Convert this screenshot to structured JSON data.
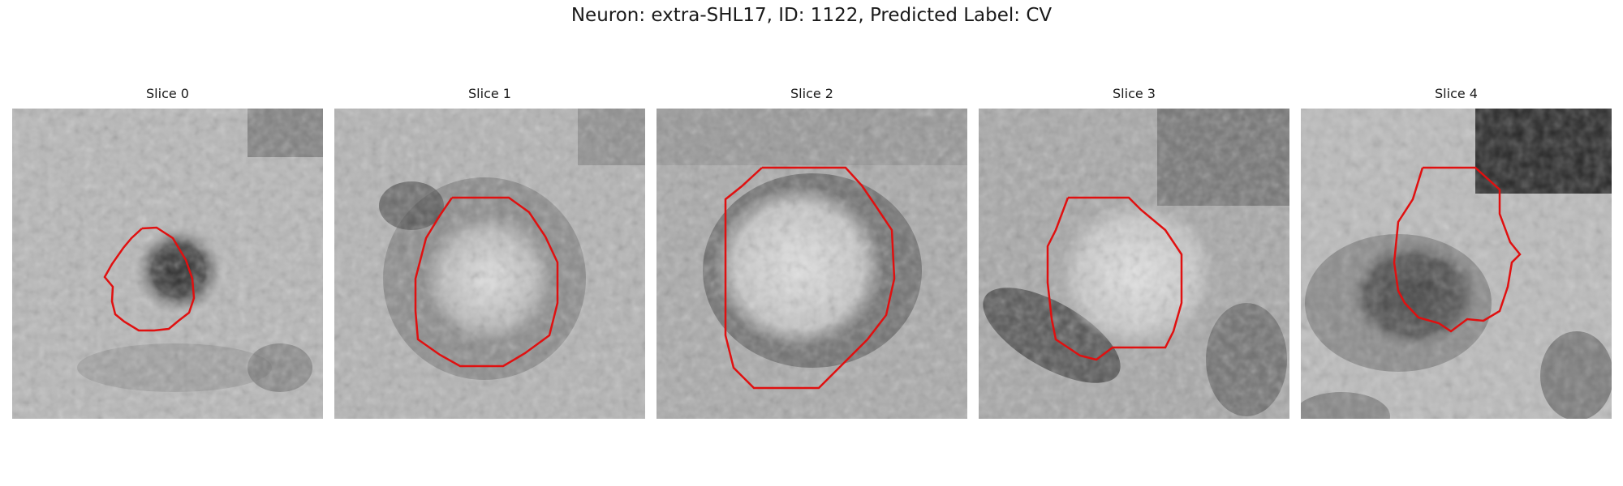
{
  "figure": {
    "title": "Neuron: extra-SHL17, ID: 1122, Predicted Label: CV"
  },
  "colors": {
    "contour": "#e01010"
  },
  "panels": [
    {
      "title": "Slice 0"
    },
    {
      "title": "Slice 1"
    },
    {
      "title": "Slice 2"
    },
    {
      "title": "Slice 3"
    },
    {
      "title": "Slice 4"
    }
  ]
}
